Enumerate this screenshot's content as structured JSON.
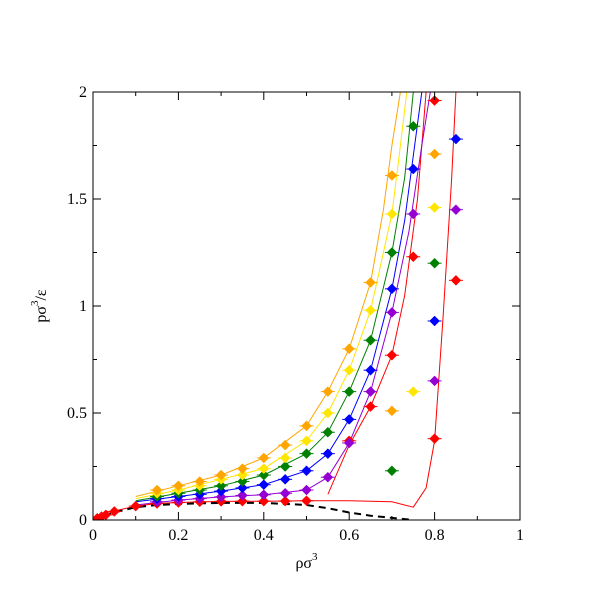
{
  "chart_data": {
    "type": "scatter",
    "xlabel": {
      "base": "ρσ",
      "sup": "3",
      "tail": ""
    },
    "ylabel": {
      "base": "pσ",
      "sup": "3",
      "tail": "/ε"
    },
    "xlim": [
      0,
      1
    ],
    "ylim": [
      0,
      2
    ],
    "xticks": [
      0,
      0.2,
      0.4,
      0.6,
      0.8,
      1
    ],
    "xtick_labels": [
      "0",
      "0.2",
      "0.4",
      "0.6",
      "0.8",
      "1"
    ],
    "yticks": [
      0,
      0.5,
      1,
      1.5,
      2
    ],
    "ytick_labels": [
      "0",
      "0.5",
      "1",
      "1.5",
      "2"
    ],
    "grid": false,
    "series": [
      {
        "color": "#ff0000",
        "marker": "diamond",
        "points": [
          [
            0.01,
            0.008
          ],
          [
            0.02,
            0.016
          ],
          [
            0.03,
            0.024
          ],
          [
            0.05,
            0.04
          ],
          [
            0.1,
            0.065
          ],
          [
            0.15,
            0.077
          ],
          [
            0.2,
            0.082
          ],
          [
            0.25,
            0.085
          ],
          [
            0.3,
            0.087
          ],
          [
            0.35,
            0.088
          ],
          [
            0.4,
            0.088
          ],
          [
            0.45,
            0.088
          ],
          [
            0.5,
            0.09
          ],
          [
            0.8,
            1.96
          ],
          [
            0.85,
            1.12
          ]
        ],
        "curve": [
          [
            0,
            0
          ],
          [
            0.05,
            0.042
          ],
          [
            0.1,
            0.065
          ],
          [
            0.15,
            0.077
          ],
          [
            0.2,
            0.082
          ],
          [
            0.3,
            0.087
          ],
          [
            0.4,
            0.088
          ],
          [
            0.5,
            0.09
          ],
          [
            0.6,
            0.09
          ],
          [
            0.7,
            0.085
          ],
          [
            0.75,
            0.06
          ],
          [
            0.78,
            0.15
          ],
          [
            0.8,
            0.37
          ],
          [
            0.82,
            0.95
          ],
          [
            0.84,
            1.6
          ],
          [
            0.85,
            2.0
          ]
        ]
      },
      {
        "color": "#ff0000",
        "marker": "diamond",
        "points": [
          [
            0.6,
            0.37
          ],
          [
            0.65,
            0.53
          ],
          [
            0.7,
            0.77
          ],
          [
            0.75,
            1.23
          ],
          [
            0.8,
            0.38
          ]
        ],
        "curve": [
          [
            0.55,
            0.12
          ],
          [
            0.6,
            0.35
          ],
          [
            0.65,
            0.53
          ],
          [
            0.7,
            0.77
          ],
          [
            0.73,
            1.05
          ],
          [
            0.76,
            1.5
          ],
          [
            0.78,
            2.0
          ]
        ]
      },
      {
        "color": "#9400d3",
        "marker": "diamond",
        "points": [
          [
            0.15,
            0.085
          ],
          [
            0.2,
            0.093
          ],
          [
            0.25,
            0.1
          ],
          [
            0.3,
            0.108
          ],
          [
            0.35,
            0.115
          ],
          [
            0.4,
            0.118
          ],
          [
            0.45,
            0.125
          ],
          [
            0.5,
            0.14
          ],
          [
            0.55,
            0.2
          ],
          [
            0.6,
            0.36
          ],
          [
            0.65,
            0.6
          ],
          [
            0.7,
            0.97
          ],
          [
            0.75,
            1.43
          ],
          [
            0.8,
            0.65
          ],
          [
            0.85,
            1.45
          ]
        ],
        "curve": [
          [
            0.1,
            0.07
          ],
          [
            0.2,
            0.093
          ],
          [
            0.3,
            0.108
          ],
          [
            0.4,
            0.118
          ],
          [
            0.5,
            0.14
          ],
          [
            0.55,
            0.2
          ],
          [
            0.6,
            0.36
          ],
          [
            0.65,
            0.6
          ],
          [
            0.7,
            0.97
          ],
          [
            0.74,
            1.35
          ],
          [
            0.77,
            1.75
          ],
          [
            0.79,
            2.0
          ]
        ]
      },
      {
        "color": "#0000ff",
        "marker": "diamond",
        "points": [
          [
            0.15,
            0.1
          ],
          [
            0.2,
            0.11
          ],
          [
            0.25,
            0.12
          ],
          [
            0.3,
            0.135
          ],
          [
            0.35,
            0.15
          ],
          [
            0.4,
            0.165
          ],
          [
            0.45,
            0.19
          ],
          [
            0.5,
            0.23
          ],
          [
            0.55,
            0.31
          ],
          [
            0.6,
            0.47
          ],
          [
            0.65,
            0.7
          ],
          [
            0.7,
            1.08
          ],
          [
            0.75,
            1.64
          ],
          [
            0.8,
            0.93
          ],
          [
            0.85,
            1.78
          ]
        ],
        "curve": [
          [
            0.1,
            0.085
          ],
          [
            0.2,
            0.11
          ],
          [
            0.3,
            0.135
          ],
          [
            0.4,
            0.165
          ],
          [
            0.5,
            0.23
          ],
          [
            0.55,
            0.31
          ],
          [
            0.6,
            0.47
          ],
          [
            0.65,
            0.7
          ],
          [
            0.7,
            1.08
          ],
          [
            0.73,
            1.4
          ],
          [
            0.76,
            1.85
          ],
          [
            0.77,
            2.0
          ]
        ]
      },
      {
        "color": "#008000",
        "marker": "diamond",
        "points": [
          [
            0.15,
            0.11
          ],
          [
            0.2,
            0.125
          ],
          [
            0.25,
            0.14
          ],
          [
            0.3,
            0.16
          ],
          [
            0.35,
            0.18
          ],
          [
            0.4,
            0.21
          ],
          [
            0.45,
            0.25
          ],
          [
            0.5,
            0.31
          ],
          [
            0.55,
            0.41
          ],
          [
            0.6,
            0.6
          ],
          [
            0.65,
            0.84
          ],
          [
            0.7,
            1.25
          ],
          [
            0.75,
            1.84
          ],
          [
            0.7,
            0.23
          ],
          [
            0.8,
            1.2
          ]
        ],
        "curve": [
          [
            0.1,
            0.09
          ],
          [
            0.2,
            0.125
          ],
          [
            0.3,
            0.16
          ],
          [
            0.4,
            0.21
          ],
          [
            0.5,
            0.31
          ],
          [
            0.55,
            0.41
          ],
          [
            0.6,
            0.6
          ],
          [
            0.65,
            0.84
          ],
          [
            0.7,
            1.25
          ],
          [
            0.73,
            1.6
          ],
          [
            0.75,
            2.0
          ]
        ]
      },
      {
        "color": "#ffe600",
        "marker": "diamond",
        "points": [
          [
            0.15,
            0.125
          ],
          [
            0.2,
            0.14
          ],
          [
            0.25,
            0.16
          ],
          [
            0.3,
            0.19
          ],
          [
            0.35,
            0.21
          ],
          [
            0.4,
            0.24
          ],
          [
            0.45,
            0.29
          ],
          [
            0.5,
            0.37
          ],
          [
            0.55,
            0.5
          ],
          [
            0.6,
            0.7
          ],
          [
            0.65,
            0.98
          ],
          [
            0.7,
            1.43
          ],
          [
            0.75,
            0.6
          ],
          [
            0.8,
            1.46
          ]
        ],
        "curve": [
          [
            0.1,
            0.1
          ],
          [
            0.2,
            0.14
          ],
          [
            0.3,
            0.19
          ],
          [
            0.4,
            0.24
          ],
          [
            0.5,
            0.37
          ],
          [
            0.55,
            0.5
          ],
          [
            0.6,
            0.7
          ],
          [
            0.65,
            0.98
          ],
          [
            0.7,
            1.43
          ],
          [
            0.72,
            1.75
          ],
          [
            0.735,
            2.0
          ]
        ]
      },
      {
        "color": "#ffa500",
        "marker": "diamond",
        "points": [
          [
            0.15,
            0.14
          ],
          [
            0.2,
            0.16
          ],
          [
            0.25,
            0.18
          ],
          [
            0.3,
            0.21
          ],
          [
            0.35,
            0.24
          ],
          [
            0.4,
            0.29
          ],
          [
            0.45,
            0.35
          ],
          [
            0.5,
            0.44
          ],
          [
            0.55,
            0.6
          ],
          [
            0.6,
            0.8
          ],
          [
            0.65,
            1.11
          ],
          [
            0.7,
            1.61
          ],
          [
            0.7,
            0.51
          ],
          [
            0.8,
            1.71
          ]
        ],
        "curve": [
          [
            0.1,
            0.11
          ],
          [
            0.2,
            0.16
          ],
          [
            0.3,
            0.21
          ],
          [
            0.4,
            0.29
          ],
          [
            0.5,
            0.44
          ],
          [
            0.55,
            0.6
          ],
          [
            0.6,
            0.8
          ],
          [
            0.65,
            1.11
          ],
          [
            0.68,
            1.45
          ],
          [
            0.7,
            1.75
          ],
          [
            0.72,
            2.0
          ]
        ]
      }
    ],
    "dashed_curve": {
      "color": "#000000",
      "points": [
        [
          0,
          0
        ],
        [
          0.05,
          0.035
        ],
        [
          0.1,
          0.06
        ],
        [
          0.15,
          0.07
        ],
        [
          0.2,
          0.075
        ],
        [
          0.3,
          0.08
        ],
        [
          0.4,
          0.08
        ],
        [
          0.5,
          0.07
        ],
        [
          0.55,
          0.055
        ],
        [
          0.6,
          0.035
        ],
        [
          0.65,
          0.02
        ],
        [
          0.7,
          0.01
        ],
        [
          0.75,
          0.0
        ]
      ]
    }
  }
}
